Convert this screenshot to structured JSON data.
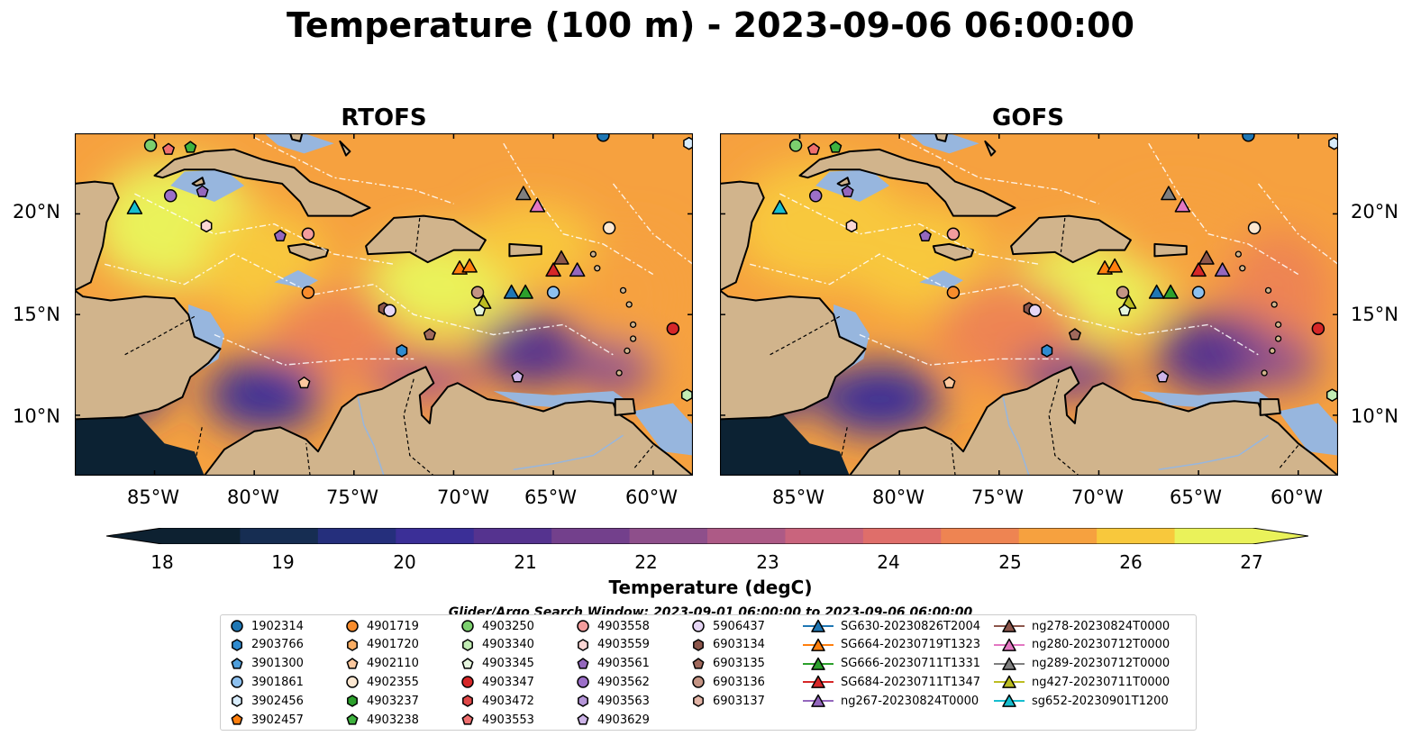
{
  "title": "Temperature (100 m) - 2023-09-06 06:00:00",
  "panels": [
    {
      "title": "RTOFS"
    },
    {
      "title": "GOFS"
    }
  ],
  "map": {
    "lon_range": [
      -89,
      -58
    ],
    "lat_range": [
      7,
      24
    ],
    "lon_ticks": [
      "85°W",
      "80°W",
      "75°W",
      "70°W",
      "65°W",
      "60°W"
    ],
    "lat_ticks": [
      "20°N",
      "15°N",
      "10°N"
    ],
    "colors": {
      "land": "#d1b48c",
      "shelf": "#97b6de",
      "deep": "#0c2233",
      "coast": "#000000"
    }
  },
  "colorbar": {
    "label": "Temperature (degC)",
    "ticks": [
      "18",
      "19",
      "20",
      "21",
      "22",
      "23",
      "24",
      "25",
      "26",
      "27"
    ],
    "min": 18,
    "max": 27,
    "extend": "both",
    "stops": [
      "#0d2131",
      "#162d52",
      "#252f7c",
      "#3b2f97",
      "#55338f",
      "#73408c",
      "#8e4f8b",
      "#ad5a86",
      "#c9647d",
      "#df6e6a",
      "#ee8452",
      "#f6a13f",
      "#f8c83c",
      "#eaf25a"
    ]
  },
  "legend": {
    "title": "Glider/Argo Search Window: 2023-09-01 06:00:00 to 2023-09-06 06:00:00",
    "entries": [
      {
        "label": "1902314",
        "marker": "circle",
        "color": "#1f77b4"
      },
      {
        "label": "2903766",
        "marker": "hexagon",
        "color": "#2f8bd0"
      },
      {
        "label": "3901300",
        "marker": "pentagon",
        "color": "#4f9fdc"
      },
      {
        "label": "3901861",
        "marker": "circle",
        "color": "#8dc0ee"
      },
      {
        "label": "3902456",
        "marker": "hexagon",
        "color": "#d8ecfb"
      },
      {
        "label": "3902457",
        "marker": "pentagon",
        "color": "#ff7f0e"
      },
      {
        "label": "4901719",
        "marker": "circle",
        "color": "#f88c2c"
      },
      {
        "label": "4901720",
        "marker": "hexagon",
        "color": "#fbae64"
      },
      {
        "label": "4902110",
        "marker": "pentagon",
        "color": "#fcc89e"
      },
      {
        "label": "4902355",
        "marker": "circle",
        "color": "#fde8d2"
      },
      {
        "label": "4903237",
        "marker": "hexagon",
        "color": "#2ca02c"
      },
      {
        "label": "4903238",
        "marker": "pentagon",
        "color": "#3fb33f"
      },
      {
        "label": "4903250",
        "marker": "circle",
        "color": "#7ccf6e"
      },
      {
        "label": "4903340",
        "marker": "hexagon",
        "color": "#c2ecb4"
      },
      {
        "label": "4903345",
        "marker": "pentagon",
        "color": "#e6f6de"
      },
      {
        "label": "4903347",
        "marker": "circle",
        "color": "#d62728"
      },
      {
        "label": "4903472",
        "marker": "hexagon",
        "color": "#e04848"
      },
      {
        "label": "4903553",
        "marker": "pentagon",
        "color": "#ef6f6f"
      },
      {
        "label": "4903558",
        "marker": "circle",
        "color": "#f39c9c"
      },
      {
        "label": "4903559",
        "marker": "hexagon",
        "color": "#fbd6d4"
      },
      {
        "label": "4903561",
        "marker": "pentagon",
        "color": "#9467bd"
      },
      {
        "label": "4903562",
        "marker": "circle",
        "color": "#9c6fc8"
      },
      {
        "label": "4903563",
        "marker": "hexagon",
        "color": "#b595d8"
      },
      {
        "label": "4903629",
        "marker": "pentagon",
        "color": "#cdb4e8"
      },
      {
        "label": "5906437",
        "marker": "circle",
        "color": "#e6d6f5"
      },
      {
        "label": "6903134",
        "marker": "hexagon",
        "color": "#8c564b"
      },
      {
        "label": "6903135",
        "marker": "pentagon",
        "color": "#a0695c"
      },
      {
        "label": "6903136",
        "marker": "circle",
        "color": "#c49484"
      },
      {
        "label": "6903137",
        "marker": "hexagon",
        "color": "#e2b4a6"
      },
      {
        "label": "SG630-20230826T2004",
        "marker": "triangle",
        "color": "#1f77b4"
      },
      {
        "label": "SG664-20230719T1323",
        "marker": "triangle",
        "color": "#ff7f0e"
      },
      {
        "label": "SG666-20230711T1331",
        "marker": "triangle",
        "color": "#2ca02c"
      },
      {
        "label": "SG684-20230711T1347",
        "marker": "triangle",
        "color": "#d62728"
      },
      {
        "label": "ng267-20230824T0000",
        "marker": "triangle",
        "color": "#9467bd"
      },
      {
        "label": "ng278-20230824T0000",
        "marker": "triangle",
        "color": "#8c564b"
      },
      {
        "label": "ng280-20230712T0000",
        "marker": "triangle",
        "color": "#e377c2"
      },
      {
        "label": "ng289-20230712T0000",
        "marker": "triangle",
        "color": "#7f7f7f"
      },
      {
        "label": "ng427-20230711T0000",
        "marker": "triangle",
        "color": "#bcbd22"
      },
      {
        "label": "sg652-20230901T1200",
        "marker": "triangle",
        "color": "#17becf"
      }
    ]
  },
  "observations": [
    {
      "id": "1902314",
      "lon": -62.5,
      "lat": 23.9
    },
    {
      "id": "4903250",
      "lon": -85.2,
      "lat": 23.4
    },
    {
      "id": "4903553",
      "lon": -84.3,
      "lat": 23.2
    },
    {
      "id": "4903238",
      "lon": -83.2,
      "lat": 23.3
    },
    {
      "id": "4903562",
      "lon": -84.2,
      "lat": 20.9
    },
    {
      "id": "4903561",
      "lon": -82.6,
      "lat": 21.1
    },
    {
      "id": "sg652-20230901T1200",
      "lon": -86.0,
      "lat": 20.3
    },
    {
      "id": "4903559",
      "lon": -82.4,
      "lat": 19.4
    },
    {
      "id": "4903561",
      "lon": -78.7,
      "lat": 18.9
    },
    {
      "id": "4903558",
      "lon": -77.3,
      "lat": 19.0
    },
    {
      "id": "ng289-20230712T0000",
      "lon": -66.5,
      "lat": 21.0
    },
    {
      "id": "ng280-20230712T0000",
      "lon": -65.8,
      "lat": 20.4
    },
    {
      "id": "4902355",
      "lon": -62.2,
      "lat": 19.3
    },
    {
      "id": "4901719",
      "lon": -77.3,
      "lat": 16.1
    },
    {
      "id": "SG664-20230719T1323",
      "lon": -69.7,
      "lat": 17.3
    },
    {
      "id": "SG664-20230719T1323",
      "lon": -69.2,
      "lat": 17.4
    },
    {
      "id": "SG684-20230711T1347",
      "lon": -65.0,
      "lat": 17.2
    },
    {
      "id": "ng278-20230824T0000",
      "lon": -64.6,
      "lat": 17.8
    },
    {
      "id": "ng267-20230824T0000",
      "lon": -63.8,
      "lat": 17.2
    },
    {
      "id": "6903136",
      "lon": -68.8,
      "lat": 16.1
    },
    {
      "id": "ng427-20230711T0000",
      "lon": -68.5,
      "lat": 15.6
    },
    {
      "id": "SG630-20230826T2004",
      "lon": -67.1,
      "lat": 16.1
    },
    {
      "id": "SG666-20230711T1331",
      "lon": -66.4,
      "lat": 16.1
    },
    {
      "id": "3901861",
      "lon": -65.0,
      "lat": 16.1
    },
    {
      "id": "4903345",
      "lon": -68.7,
      "lat": 15.2
    },
    {
      "id": "6903134",
      "lon": -73.5,
      "lat": 15.3
    },
    {
      "id": "5906437",
      "lon": -73.2,
      "lat": 15.2
    },
    {
      "id": "6903135",
      "lon": -71.2,
      "lat": 14.0
    },
    {
      "id": "2903766",
      "lon": -72.6,
      "lat": 13.2
    },
    {
      "id": "4903347",
      "lon": -59.0,
      "lat": 14.3
    },
    {
      "id": "4902110",
      "lon": -77.5,
      "lat": 11.6
    },
    {
      "id": "4903629",
      "lon": -66.8,
      "lat": 11.9
    },
    {
      "id": "4903340",
      "lon": -58.3,
      "lat": 11.0
    },
    {
      "id": "3902456",
      "lon": -58.2,
      "lat": 23.5
    }
  ]
}
